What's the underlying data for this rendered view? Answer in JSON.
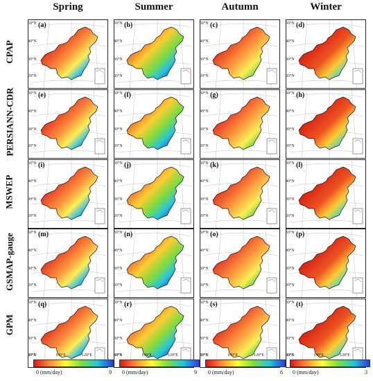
{
  "seasons": [
    "Spring",
    "Summer",
    "Autumn",
    "Winter"
  ],
  "products": [
    "CPAP",
    "PERSIANN-CDR",
    "MSWEP",
    "GSMAP-gauge",
    "GPM"
  ],
  "panel_letters": [
    "(a)",
    "(b)",
    "(c)",
    "(d)",
    "(e)",
    "(f)",
    "(g)",
    "(h)",
    "(i)",
    "(j)",
    "(k)",
    "(l)",
    "(m)",
    "(n)",
    "(o)",
    "(p)",
    "(q)",
    "(r)",
    "(s)",
    "(t)"
  ],
  "lat_labels": [
    "50°N",
    "40°N",
    "30°N",
    "20°N"
  ],
  "lon_labels": [
    "80°E",
    "100°E",
    "120°E"
  ],
  "colorbars": [
    {
      "min": "0 (mm/day)",
      "max": "9"
    },
    {
      "min": "0 (mm/day)",
      "max": "9"
    },
    {
      "min": "0 (mm/day)",
      "max": "6"
    },
    {
      "min": "0 (mm/day)",
      "max": "3"
    }
  ],
  "colors": {
    "low": "#d7191c",
    "mid": "#ffff33",
    "high": "#2b3cd6"
  }
}
